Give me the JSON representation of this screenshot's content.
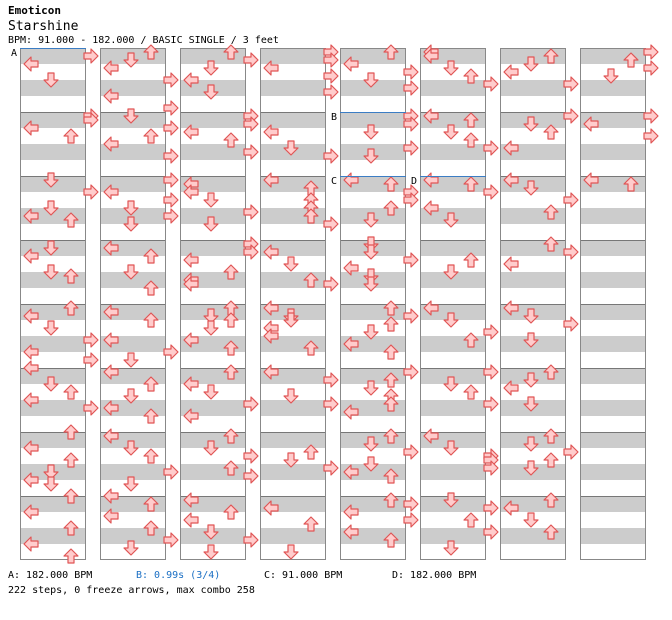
{
  "header": {
    "artist": "Emoticon",
    "title": "Starshine",
    "info": "BPM: 91.000 - 182.000 / BASIC SINGLE / 3 feet"
  },
  "colors": {
    "arrow_fill": "#ffcccc",
    "arrow_stroke": "#e05555",
    "band": "#cccccc",
    "bpm_line": "#3b7dc4",
    "b_text": "#1a6fc4"
  },
  "bpm_markers": [
    {
      "label": "A",
      "column": 0,
      "measure": 0,
      "beat": 0
    },
    {
      "label": "B",
      "column": 4,
      "measure": 1,
      "beat": 0
    },
    {
      "label": "C",
      "column": 4,
      "measure": 2,
      "beat": 0
    },
    {
      "label": "D",
      "column": 5,
      "measure": 2,
      "beat": 0
    }
  ],
  "columns": [
    [
      "1:0.50:R",
      "1:1.00:L",
      "1:2.00:D",
      "2:0.25:R",
      "2:0.50:R",
      "2:1.00:L",
      "2:1.50:U",
      "3:0.25:D",
      "3:1.00:R",
      "3:2.00:D",
      "3:2.50:L",
      "3:2.75:U",
      "4:0.50:D",
      "4:1.00:L",
      "4:2.00:D",
      "4:2.25:U",
      "5:0.25:U",
      "5:0.75:L",
      "5:1.50:D",
      "5:2.25:R",
      "5:3.00:L",
      "5:3.50:R",
      "6:0.00:L",
      "6:1.00:D",
      "6:1.50:U",
      "6:2.00:L",
      "6:2.50:R",
      "7:0.00:U",
      "7:1.00:L",
      "7:1.75:U",
      "7:2.50:D",
      "7:3.00:L",
      "7:3.25:D",
      "8:0.00:U",
      "8:1.00:L",
      "8:2.00:U",
      "8:3.00:L",
      "8:3.75:U"
    ],
    [
      "1:0.25:U",
      "1:0.75:D",
      "1:1.25:L",
      "1:2.00:R",
      "1:3.00:L",
      "1:3.75:R",
      "2:0.25:D",
      "2:1.00:R",
      "2:1.50:U",
      "2:2.00:L",
      "2:2.75:R",
      "3:0.25:R",
      "3:1.00:L",
      "3:1.50:R",
      "3:2.00:D",
      "3:2.50:R",
      "3:3.00:D",
      "4:0.50:L",
      "4:1.00:U",
      "4:2.00:D",
      "4:3.00:U",
      "5:0.50:L",
      "5:1.00:U",
      "5:2.25:L",
      "5:3.00:R",
      "5:3.50:D",
      "6:0.25:L",
      "6:1.00:U",
      "6:1.75:D",
      "6:2.50:L",
      "6:3.00:U",
      "7:0.25:L",
      "7:1.00:D",
      "7:1.50:U",
      "7:2.50:R",
      "7:3.25:D",
      "8:0.00:L",
      "8:0.50:U",
      "8:1.25:L",
      "8:2.00:U",
      "8:2.75:R",
      "8:3.25:D"
    ],
    [
      "1:0.25:U",
      "1:0.75:R",
      "1:1.25:D",
      "1:2.00:L",
      "1:2.75:D",
      "2:0.25:R",
      "2:0.75:R",
      "2:1.25:L",
      "2:1.75:U",
      "2:2.50:R",
      "3:0.50:L",
      "3:1.00:L",
      "3:1.50:D",
      "3:2.25:R",
      "3:3.00:D",
      "4:0.25:R",
      "4:0.75:R",
      "4:1.25:L",
      "4:2.00:U",
      "4:2.50:L",
      "4:2.75:L",
      "5:0.25:U",
      "5:0.75:D",
      "5:1.00:U",
      "5:1.50:D",
      "5:2.25:L",
      "5:2.75:U",
      "6:0.25:U",
      "6:1.00:L",
      "6:1.50:D",
      "6:2.25:R",
      "6:3.00:L",
      "7:0.25:U",
      "7:1.00:D",
      "7:1.50:R",
      "7:2.25:U",
      "7:2.75:R",
      "8:0.25:L",
      "8:1.00:U",
      "8:1.50:L",
      "8:2.25:D",
      "8:2.75:R",
      "8:3.50:D"
    ],
    [
      "1:0.25:R",
      "1:0.75:R",
      "1:1.25:L",
      "1:1.75:R",
      "1:2.75:R",
      "2:1.25:L",
      "2:2.25:D",
      "2:2.75:R",
      "3:0.25:L",
      "3:0.75:U",
      "3:1.50:U",
      "3:2.00:U",
      "3:2.50:U",
      "3:3.00:R",
      "4:0.75:L",
      "4:1.50:D",
      "4:2.50:U",
      "4:2.75:R",
      "5:0.25:L",
      "5:0.75:D",
      "5:1.00:D",
      "5:1.50:L",
      "5:2.00:L",
      "5:2.75:U",
      "6:0.25:L",
      "6:0.75:R",
      "6:1.75:D",
      "6:2.25:R",
      "7:1.25:U",
      "7:1.75:D",
      "7:2.25:R",
      "8:0.75:L",
      "8:1.75:U",
      "8:3.50:D"
    ],
    [
      "1:0.25:U",
      "1:1.00:L",
      "1:1.50:R",
      "1:2.00:D",
      "1:2.50:R",
      "2:0.25:R",
      "2:0.75:R",
      "2:1.25:D",
      "2:2.25:R",
      "2:2.75:D",
      "3:0.25:L",
      "3:0.50:U",
      "3:1.00:R",
      "3:1.50:R",
      "3:2.00:U",
      "3:2.75:D",
      "4:0.25:D",
      "4:0.75:D",
      "4:1.25:R",
      "4:1.75:L",
      "4:2.25:D",
      "4:2.75:D",
      "5:0.25:U",
      "5:0.75:R",
      "5:1.25:U",
      "5:1.75:D",
      "5:2.50:L",
      "5:3.00:U",
      "6:0.25:R",
      "6:0.75:U",
      "6:1.25:D",
      "6:1.75:U",
      "6:2.25:U",
      "6:2.75:L",
      "7:0.25:U",
      "7:0.75:D",
      "7:1.25:R",
      "7:2.00:D",
      "7:2.50:L",
      "7:2.75:U",
      "8:0.25:U",
      "8:0.50:R",
      "8:1.00:L",
      "8:1.50:R",
      "8:2.25:L",
      "8:2.75:U"
    ],
    [
      "1:0.25:L",
      "1:0.50:L",
      "1:1.25:D",
      "1:1.75:U",
      "1:2.25:R",
      "2:0.25:L",
      "2:0.50:U",
      "2:1.25:D",
      "2:1.75:U",
      "2:2.25:R",
      "3:0.25:L",
      "3:0.50:U",
      "3:1.00:R",
      "3:2.00:L",
      "3:2.75:D",
      "4:1.25:U",
      "4:2.00:D",
      "5:0.25:L",
      "5:1.00:D",
      "5:1.75:R",
      "5:2.25:U",
      "6:0.25:R",
      "6:1.00:D",
      "6:1.50:U",
      "6:2.25:R",
      "7:0.25:L",
      "7:1.00:D",
      "7:1.50:R",
      "7:1.75:R",
      "7:2.25:R",
      "8:0.25:D",
      "8:0.75:R",
      "8:1.50:U",
      "8:2.25:R",
      "8:3.25:D"
    ],
    [
      "1:0.50:U",
      "1:1.00:D",
      "1:1.50:L",
      "1:2.25:R",
      "2:0.25:R",
      "2:0.75:D",
      "2:1.25:U",
      "2:2.25:L",
      "3:0.25:L",
      "3:0.75:D",
      "3:1.50:R",
      "3:2.25:U",
      "4:0.25:U",
      "4:0.75:R",
      "4:1.50:L",
      "5:0.25:L",
      "5:0.75:D",
      "5:1.25:R",
      "5:2.25:D",
      "6:0.25:U",
      "6:0.75:D",
      "6:1.25:L",
      "6:2.25:D",
      "7:0.25:U",
      "7:0.75:D",
      "7:1.25:R",
      "7:1.75:U",
      "7:2.25:D",
      "8:0.25:U",
      "8:0.75:L",
      "8:1.50:D",
      "8:2.25:U"
    ],
    [
      "1:0.25:R",
      "1:0.75:U",
      "1:1.25:R",
      "1:1.75:D",
      "2:0.25:R",
      "2:0.75:L",
      "2:1.50:R",
      "3:0.25:L",
      "3:0.50:U"
    ]
  ],
  "legend": {
    "a": "A: 182.000 BPM",
    "b": "B: 0.99s (3/4)",
    "c": "C: 91.000 BPM",
    "d": "D: 182.000 BPM"
  },
  "stats": "222 steps, 0 freeze arrows, max combo 258"
}
